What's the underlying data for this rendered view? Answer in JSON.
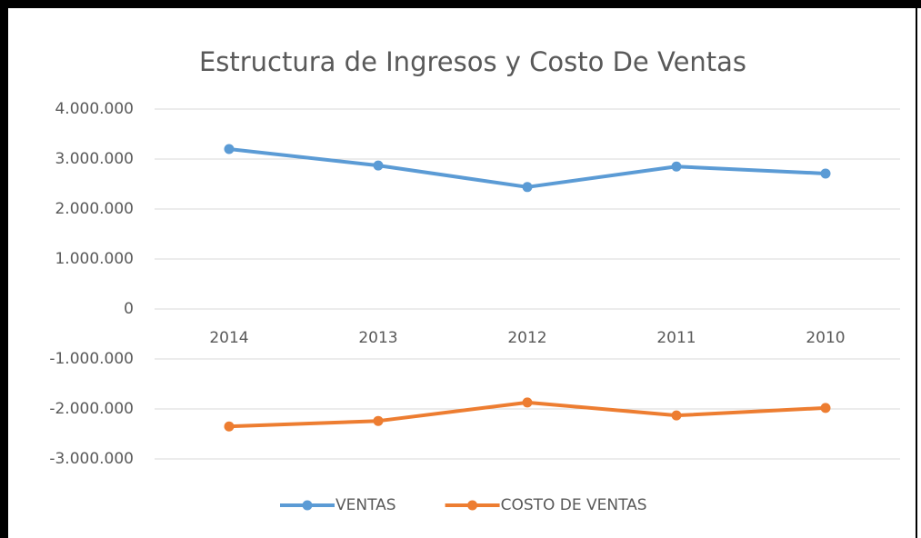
{
  "chart_data": {
    "type": "line",
    "title": "Estructura de Ingresos y Costo De Ventas",
    "categories": [
      "2014",
      "2013",
      "2012",
      "2011",
      "2010"
    ],
    "series": [
      {
        "name": "VENTAS",
        "color": "#5b9bd5",
        "values": [
          3200000,
          2870000,
          2440000,
          2850000,
          2710000
        ]
      },
      {
        "name": "COSTO DE VENTAS",
        "color": "#ed7d31",
        "values": [
          -2350000,
          -2240000,
          -1870000,
          -2130000,
          -1980000
        ]
      }
    ],
    "ylim": [
      -3000000,
      4000000
    ],
    "yticks": [
      {
        "value": -3000000,
        "label": "-3.000.000"
      },
      {
        "value": -2000000,
        "label": "-2.000.000"
      },
      {
        "value": -1000000,
        "label": "-1.000.000"
      },
      0,
      {
        "value": 1000000,
        "label": "1.000.000"
      },
      {
        "value": 2000000,
        "label": "2.000.000"
      },
      {
        "value": 3000000,
        "label": "3.000.000"
      },
      {
        "value": 4000000,
        "label": "4.000.000"
      }
    ],
    "grid": true,
    "legend": "bottom"
  }
}
